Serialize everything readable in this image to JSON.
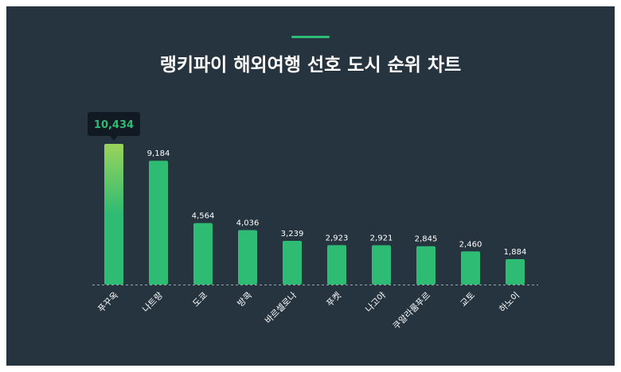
{
  "title": "랭키파이 해외여행 선호 도시 순위 차트",
  "colors": {
    "background": "#26343f",
    "bar": "#2ebb73",
    "bar_highlight_top": "#9ad45a",
    "accent": "#2ebb73",
    "tooltip_bg": "#111a22",
    "tooltip_text": "#2ebb73",
    "label_text": "#ffffff",
    "baseline": "#9aa6ad"
  },
  "chart_data": {
    "type": "bar",
    "title": "랭키파이 해외여행 선호 도시 순위 차트",
    "categories": [
      "푸꾸옥",
      "나트랑",
      "도쿄",
      "방콕",
      "바르셀로나",
      "푸켓",
      "나고야",
      "쿠알라룸푸르",
      "교토",
      "하노이"
    ],
    "values": [
      10434,
      9184,
      4564,
      4036,
      3239,
      2923,
      2921,
      2845,
      2460,
      1884
    ],
    "value_labels": [
      "10,434",
      "9,184",
      "4,564",
      "4,036",
      "3,239",
      "2,923",
      "2,921",
      "2,845",
      "2,460",
      "1,884"
    ],
    "highlight_index": 0,
    "ylim": [
      0,
      10434
    ],
    "xlabel": "",
    "ylabel": "",
    "grid": false,
    "legend": "none"
  }
}
